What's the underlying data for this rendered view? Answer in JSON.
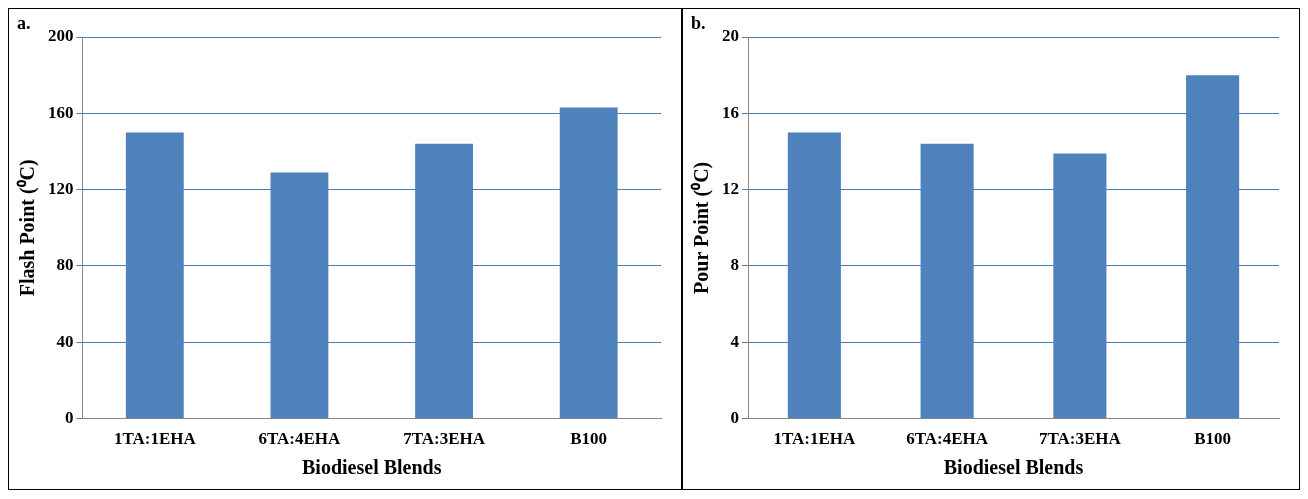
{
  "chart_data": [
    {
      "type": "bar",
      "annotations": [
        "a."
      ],
      "xlabel": "Biodiesel Blends",
      "ylabel": "Flash Point (⁰C)",
      "categories": [
        "1TA:1EHA",
        "6TA:4EHA",
        "7TA:3EHA",
        "B100"
      ],
      "values": [
        150,
        129,
        144,
        163
      ],
      "color": "#4f81bd",
      "ylim": [
        0,
        200
      ],
      "yticks": [
        0,
        40,
        80,
        120,
        160,
        200
      ],
      "grid": "y"
    },
    {
      "type": "bar",
      "annotations": [
        "b."
      ],
      "xlabel": "Biodiesel Blends",
      "ylabel": "Pour Point (⁰C)",
      "categories": [
        "1TA:1EHA",
        "6TA:4EHA",
        "7TA:3EHA",
        "B100"
      ],
      "values": [
        15,
        14.4,
        13.9,
        18
      ],
      "color": "#4f81bd",
      "ylim": [
        0,
        20
      ],
      "yticks": [
        0,
        4,
        8,
        12,
        16,
        20
      ],
      "grid": "y"
    }
  ]
}
